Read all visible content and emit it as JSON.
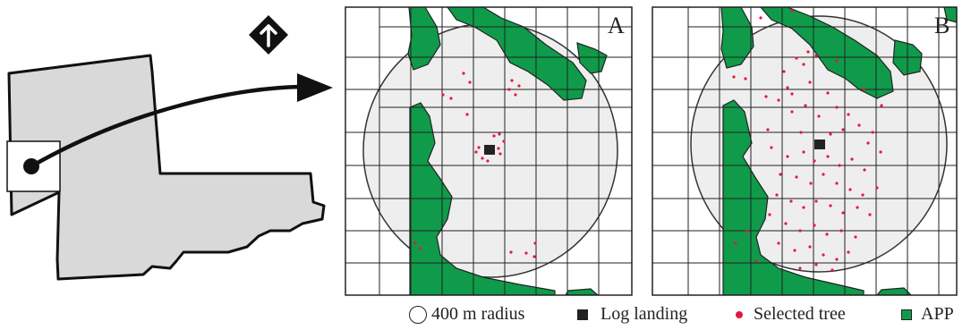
{
  "panels": [
    {
      "letter": "A",
      "selection": "clustered"
    },
    {
      "letter": "B",
      "selection": "dispersed"
    }
  ],
  "legend": {
    "radius_label": "400 m radius",
    "landing_label": "Log landing",
    "tree_label": "Selected tree",
    "app_label": "APP"
  },
  "colors": {
    "app": "#0f9b4a",
    "tree": "#e5173f",
    "landing": "#222222",
    "region_fill": "#d9d9d9",
    "circle_fill": "#eeeeee",
    "grid": "#222222"
  },
  "icons": {
    "north": "north-arrow-icon",
    "direction": "arrow-right-icon"
  }
}
